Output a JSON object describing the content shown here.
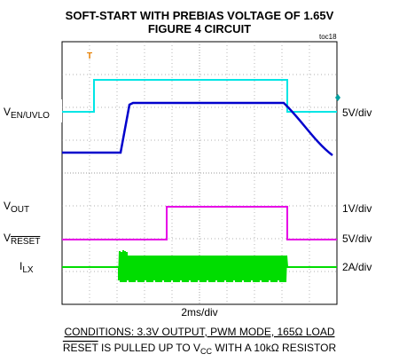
{
  "header": {
    "title": "SOFT-START WITH PREBIAS VOLTAGE OF 1.65V",
    "subtitle": "FIGURE 4 CIRCUIT",
    "code": "toc18"
  },
  "channels": [
    {
      "symbol": "V",
      "subscript": "EN/UVLO",
      "scale": "5V/div"
    },
    {
      "symbol": "V",
      "subscript": "OUT",
      "scale": "1V/div"
    },
    {
      "symbol": "V",
      "overline": "RESET",
      "scale": "5V/div"
    },
    {
      "symbol": "I",
      "subscript": "LX",
      "scale": "2A/div"
    }
  ],
  "timebase": "2ms/div",
  "conditions": {
    "line1": "CONDITIONS: 3.3V OUTPUT, PWM MODE, 165Ω LOAD",
    "line2": {
      "overline": "RESET",
      "text1": " IS PULLED UP TO V",
      "sub": "CC",
      "text2": " WITH A 10kΩ RESISTOR"
    }
  }
}
